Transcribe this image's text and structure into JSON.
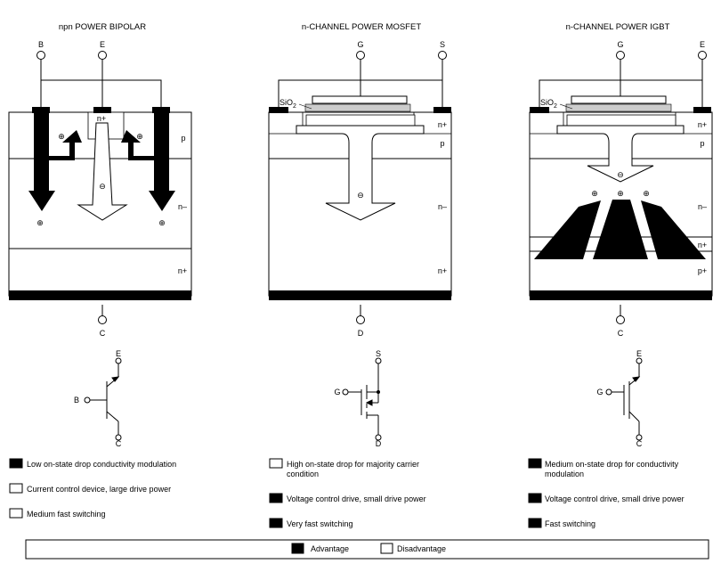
{
  "bipolar": {
    "title": "npn POWER BIPOLAR",
    "pins": {
      "b": "B",
      "e": "E",
      "c": "C"
    },
    "regions": {
      "n_plus_emitter": "n+",
      "p": "p",
      "n_minus": "n–",
      "n_plus": "n+"
    },
    "symbol": {
      "e": "E",
      "b": "B",
      "c": "C"
    },
    "features": [
      {
        "text": "Low on-state drop conductivity modulation",
        "type": "advantage"
      },
      {
        "text": "Current control device, large drive power",
        "type": "disadvantage"
      },
      {
        "text": "Medium fast switching",
        "type": "disadvantage"
      }
    ]
  },
  "mosfet": {
    "title": "n-CHANNEL POWER MOSFET",
    "pins": {
      "g": "G",
      "s": "S",
      "d": "D"
    },
    "oxide": "SiO",
    "oxide_sub": "2",
    "regions": {
      "n_plus": "n+",
      "p": "p",
      "n_minus": "n–",
      "n_plus_sub": "n+"
    },
    "symbol": {
      "s": "S",
      "g": "G",
      "d": "D"
    },
    "features": [
      {
        "text_lines": [
          "High on-state drop for majority carrier",
          "condition"
        ],
        "type": "disadvantage"
      },
      {
        "text": "Voltage control drive, small drive power",
        "type": "advantage"
      },
      {
        "text": "Very fast switching",
        "type": "advantage"
      }
    ]
  },
  "igbt": {
    "title": "n-CHANNEL POWER IGBT",
    "pins": {
      "g": "G",
      "e": "E",
      "c": "C"
    },
    "oxide": "SiO",
    "oxide_sub": "2",
    "regions": {
      "n_plus": "n+",
      "p": "p",
      "n_minus": "n–",
      "n_plus_buf": "n+",
      "p_plus": "p+"
    },
    "symbol": {
      "e": "E",
      "g": "G",
      "c": "C"
    },
    "features": [
      {
        "text_lines": [
          "Medium on-state drop for conductivity",
          "modulation"
        ],
        "type": "advantage"
      },
      {
        "text": "Voltage control drive, small drive power",
        "type": "advantage"
      },
      {
        "text": "Fast switching",
        "type": "advantage"
      }
    ]
  },
  "legend": {
    "advantage": "Advantage",
    "disadvantage": "Disadvantage"
  },
  "symbols": {
    "hole": "⊕",
    "electron": "⊖"
  }
}
